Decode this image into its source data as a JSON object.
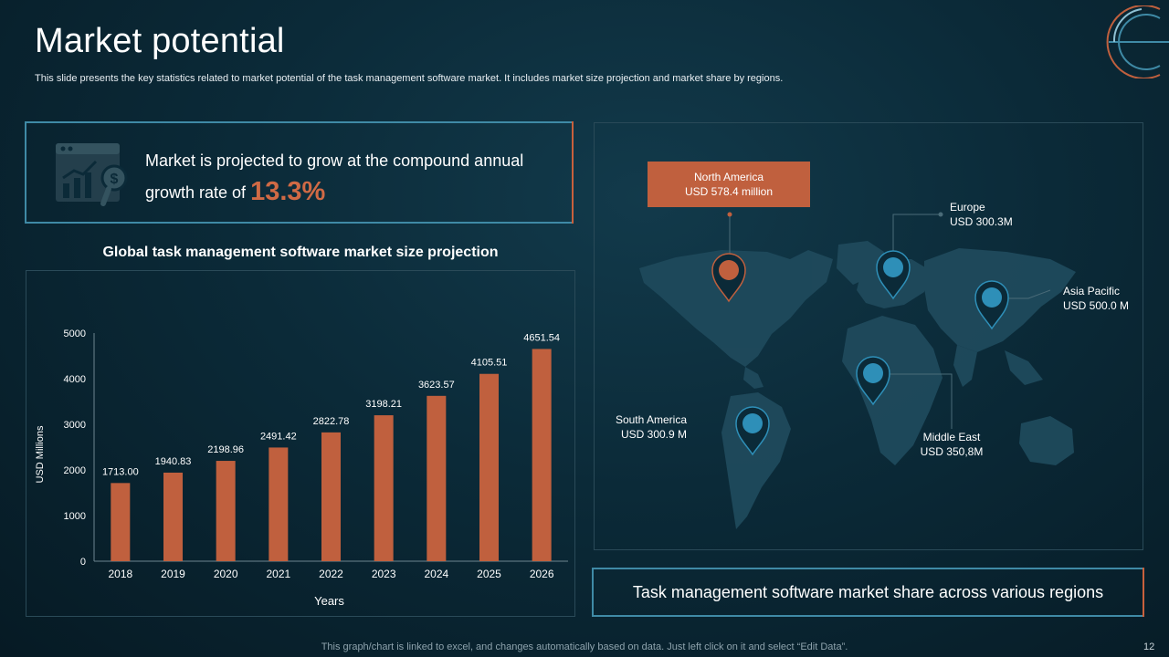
{
  "header": {
    "title": "Market potential",
    "subtitle": "This slide presents the key statistics related to market potential of the task management software market. It includes market size projection and market share by regions."
  },
  "cagr": {
    "text_line1": "Market is projected to grow at the compound annual",
    "text_line2": "growth rate of",
    "rate": "13.3%",
    "icon": "growth-chart-dollar-icon"
  },
  "chart_data": {
    "type": "bar",
    "title": "Global task management software market size projection",
    "categories": [
      "2018",
      "2019",
      "2020",
      "2021",
      "2022",
      "2023",
      "2024",
      "2025",
      "2026"
    ],
    "values": [
      1713.0,
      1940.83,
      2198.96,
      2491.42,
      2822.78,
      3198.21,
      3623.57,
      4105.51,
      4651.54
    ],
    "value_labels": [
      "1713.00",
      "1940.83",
      "2198.96",
      "2491.42",
      "2822.78",
      "3198.21",
      "3623.57",
      "4105.51",
      "4651.54"
    ],
    "xlabel": "Years",
    "ylabel": "USD Millions",
    "ylim": [
      0,
      5000
    ],
    "yticks": [
      "0",
      "1000",
      "2000",
      "3000",
      "4000",
      "5000"
    ],
    "bar_color": "#c0603e",
    "grid": false,
    "legend": "none"
  },
  "map": {
    "regions": {
      "north_america": {
        "name": "North America",
        "value": "USD 578.4 million"
      },
      "europe": {
        "name": "Europe",
        "value": "USD 300.3M"
      },
      "asia_pacific": {
        "name": "Asia Pacific",
        "value": "USD 500.0 M"
      },
      "south_america": {
        "name": "South America",
        "value": "USD 300.9 M"
      },
      "middle_east": {
        "name": "Middle East",
        "value": "USD 350,8M"
      }
    },
    "pin_color_primary": "#c0603e",
    "pin_color_secondary": "#2e8fb8",
    "caption": "Task management software market share across various regions"
  },
  "footer": {
    "note": "This graph/chart is linked to excel, and changes automatically based on data. Just left click on it and select “Edit Data”.",
    "page_number": "12"
  },
  "colors": {
    "accent_orange": "#c0603e",
    "border_blue": "#3f8aa6",
    "background": "#0b2a38"
  }
}
